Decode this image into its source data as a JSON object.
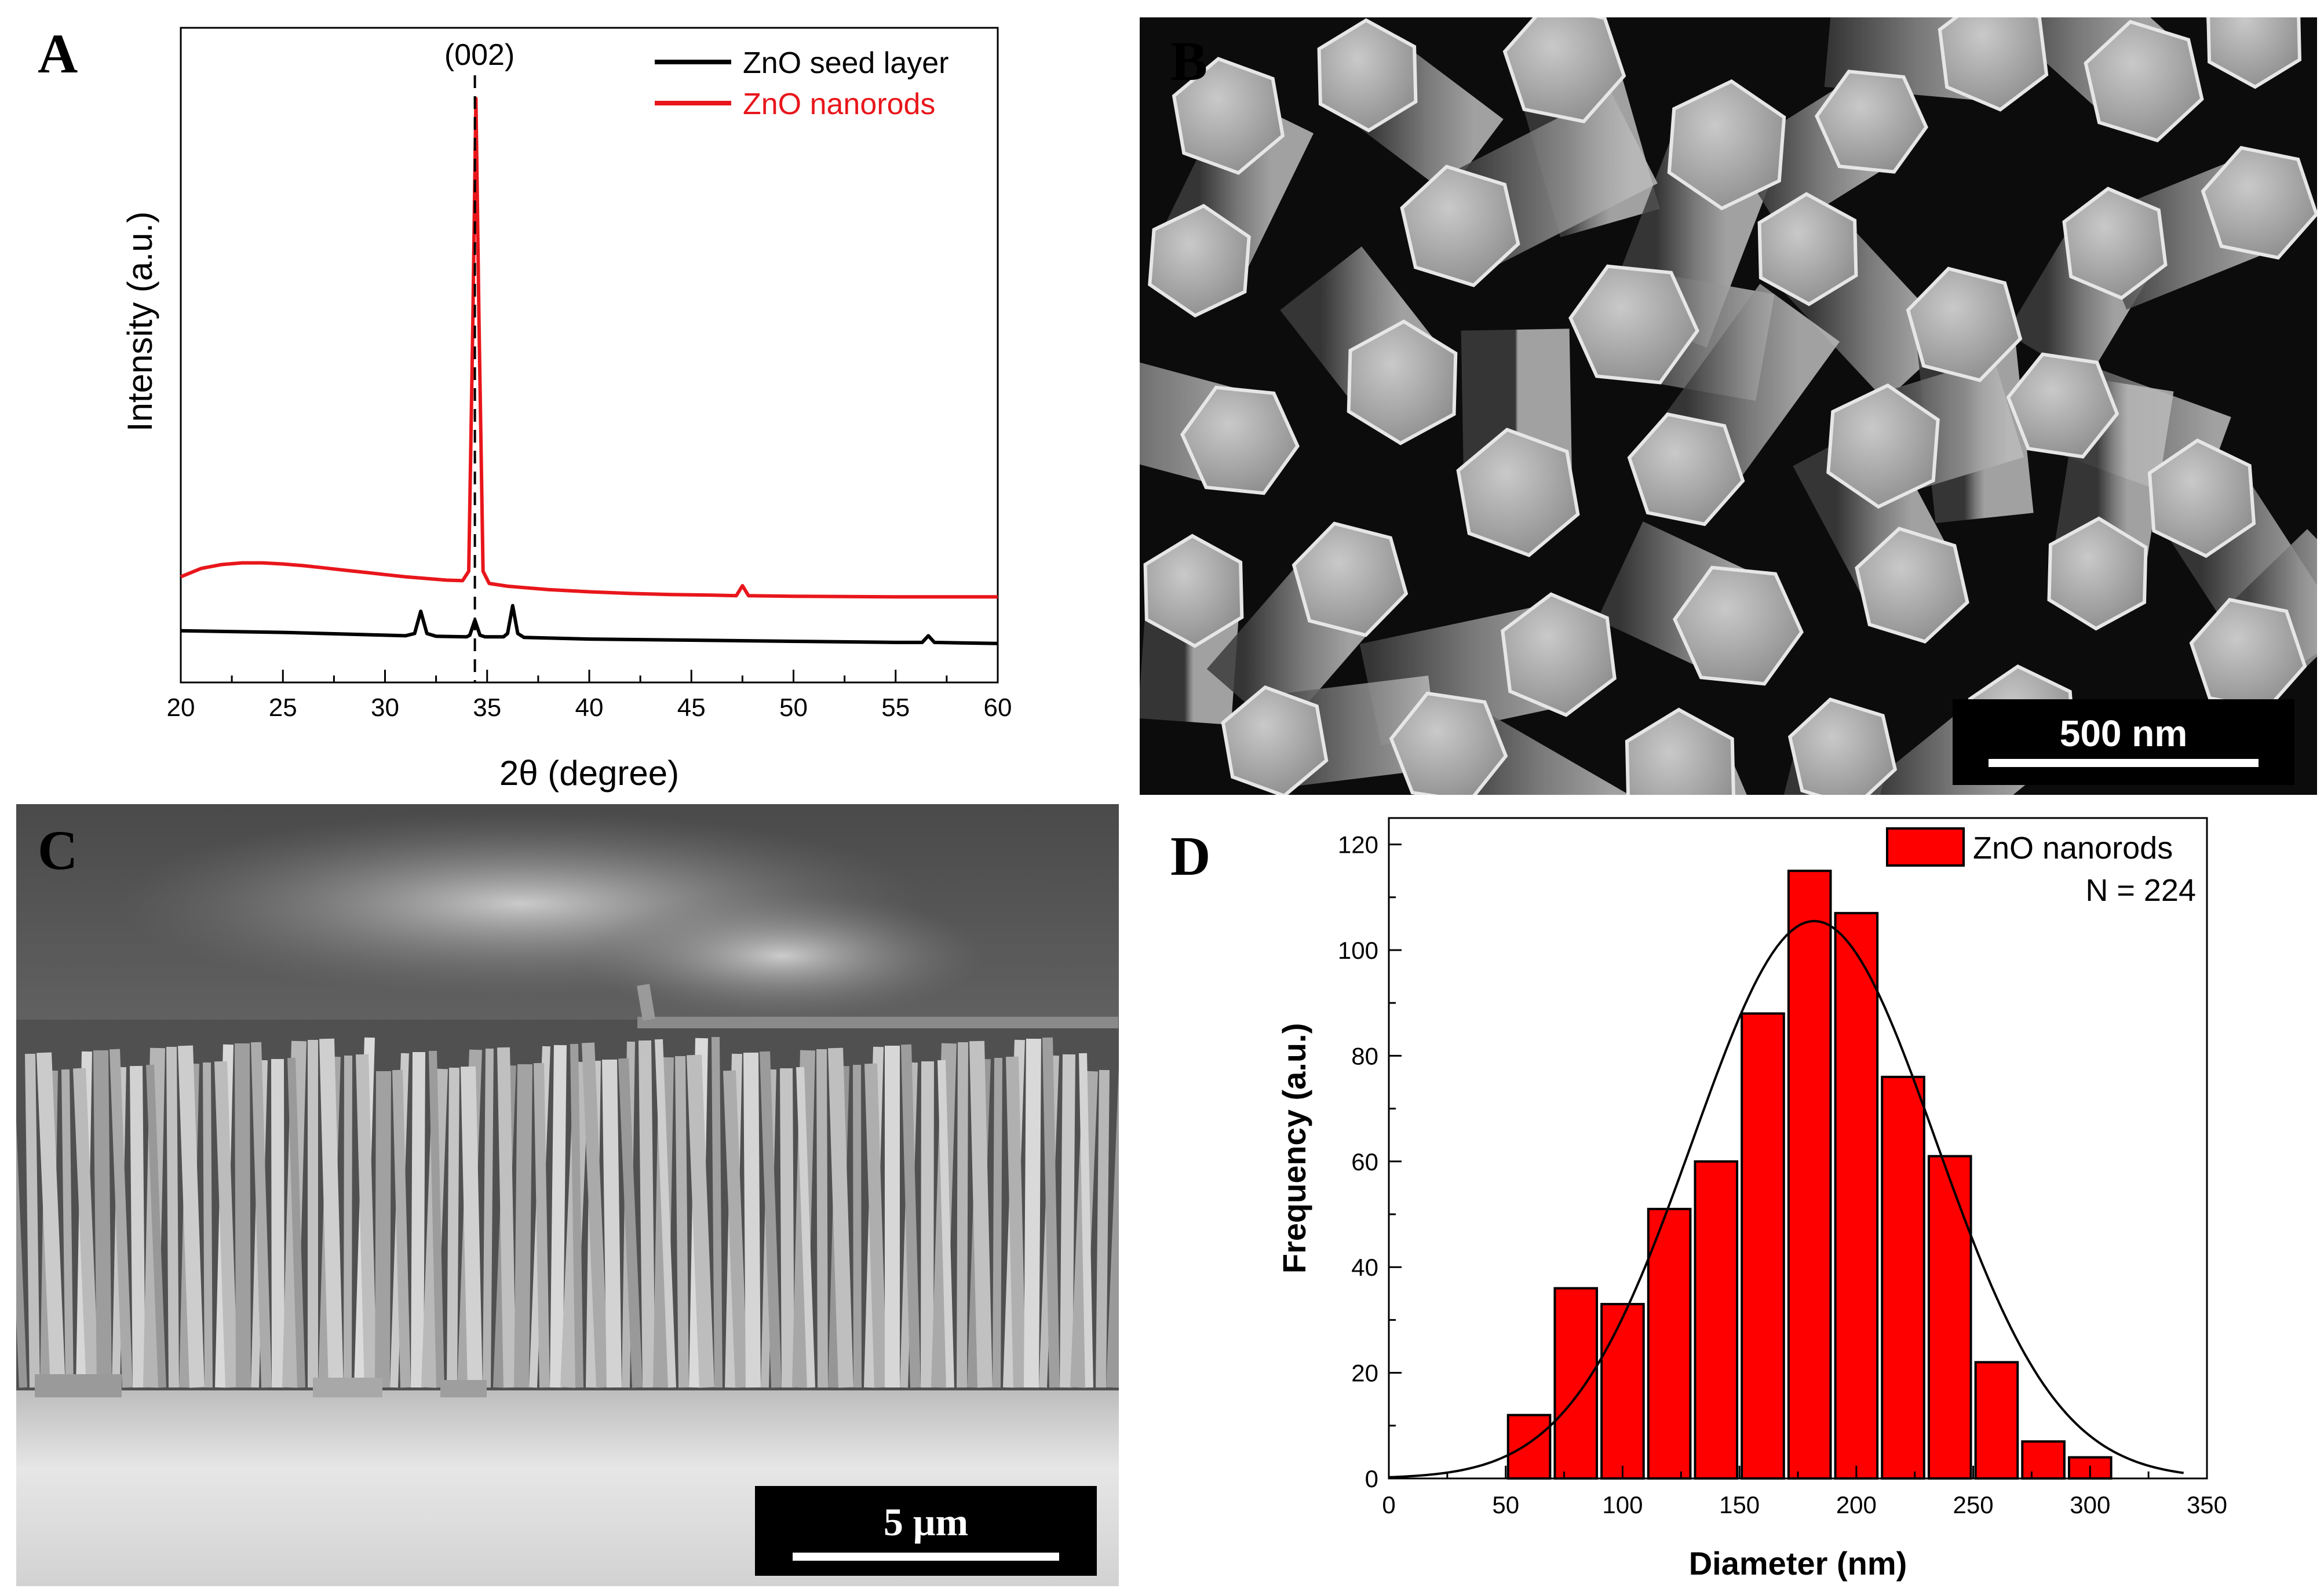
{
  "panel_labels": {
    "a": "A",
    "b": "B",
    "c": "C",
    "d": "D"
  },
  "scale_bars": {
    "b": "500 nm",
    "c": "5 μm"
  },
  "colors": {
    "seed": "#000000",
    "nanorods": "#e8161b",
    "bar_fill": "#ff0000",
    "fit": "#000000"
  },
  "chart_data": [
    {
      "panel": "A",
      "type": "line",
      "title": "",
      "xlabel": "2θ (degree)",
      "ylabel": "Intensity (a.u.)",
      "xlim": [
        20,
        60
      ],
      "xticks": [
        20,
        25,
        30,
        35,
        40,
        45,
        50,
        55,
        60
      ],
      "y_ticks_shown": false,
      "annotation": {
        "text": "(002)",
        "x": 34.4,
        "dashed_line": true
      },
      "legend": {
        "position": "top-right",
        "entries": [
          "ZnO seed layer",
          "ZnO nanorods"
        ]
      },
      "series": [
        {
          "name": "ZnO seed layer",
          "color": "#000000",
          "points": [
            [
              20,
              0.043
            ],
            [
              25,
              0.04
            ],
            [
              30,
              0.035
            ],
            [
              31.0,
              0.034
            ],
            [
              31.45,
              0.038
            ],
            [
              31.75,
              0.078
            ],
            [
              32.05,
              0.038
            ],
            [
              32.5,
              0.033
            ],
            [
              34.0,
              0.032
            ],
            [
              34.15,
              0.035
            ],
            [
              34.4,
              0.062
            ],
            [
              34.65,
              0.035
            ],
            [
              34.9,
              0.032
            ],
            [
              35.8,
              0.032
            ],
            [
              36.0,
              0.038
            ],
            [
              36.25,
              0.088
            ],
            [
              36.5,
              0.038
            ],
            [
              36.8,
              0.031
            ],
            [
              40,
              0.028
            ],
            [
              45,
              0.026
            ],
            [
              50,
              0.024
            ],
            [
              55,
              0.022
            ],
            [
              56.3,
              0.022
            ],
            [
              56.6,
              0.034
            ],
            [
              56.9,
              0.022
            ],
            [
              60,
              0.02
            ]
          ]
        },
        {
          "name": "ZnO nanorods",
          "color": "#e8161b",
          "points": [
            [
              20,
              0.14
            ],
            [
              21,
              0.155
            ],
            [
              22,
              0.162
            ],
            [
              23,
              0.165
            ],
            [
              24,
              0.165
            ],
            [
              25,
              0.163
            ],
            [
              26,
              0.16
            ],
            [
              27,
              0.156
            ],
            [
              28,
              0.152
            ],
            [
              29,
              0.148
            ],
            [
              30,
              0.144
            ],
            [
              31,
              0.14
            ],
            [
              32,
              0.137
            ],
            [
              33,
              0.134
            ],
            [
              33.8,
              0.133
            ],
            [
              34.1,
              0.15
            ],
            [
              34.3,
              0.6
            ],
            [
              34.45,
              1.0
            ],
            [
              34.6,
              0.6
            ],
            [
              34.8,
              0.15
            ],
            [
              35.1,
              0.128
            ],
            [
              36,
              0.123
            ],
            [
              38,
              0.117
            ],
            [
              40,
              0.113
            ],
            [
              42,
              0.11
            ],
            [
              44,
              0.108
            ],
            [
              46,
              0.107
            ],
            [
              47.2,
              0.106
            ],
            [
              47.5,
              0.124
            ],
            [
              47.8,
              0.106
            ],
            [
              50,
              0.105
            ],
            [
              55,
              0.104
            ],
            [
              60,
              0.104
            ]
          ]
        }
      ]
    },
    {
      "panel": "D",
      "type": "bar",
      "title": "",
      "xlabel": "Diameter (nm)",
      "ylabel": "Frequency (a.u.)",
      "xlim": [
        0,
        350
      ],
      "ylim": [
        0,
        125
      ],
      "xticks": [
        0,
        50,
        100,
        150,
        200,
        250,
        300,
        350
      ],
      "yticks": [
        0,
        20,
        40,
        60,
        80,
        100,
        120
      ],
      "legend": {
        "position": "top-right",
        "entries": [
          "ZnO nanorods"
        ],
        "note": "N = 224"
      },
      "bin_width": 20,
      "bin_centers": [
        60,
        80,
        100,
        120,
        140,
        160,
        180,
        200,
        220,
        240,
        260,
        280,
        300
      ],
      "series": [
        {
          "name": "ZnO nanorods",
          "values": [
            12,
            36,
            33,
            51,
            60,
            88,
            115,
            107,
            76,
            61,
            22,
            7,
            4
          ]
        }
      ],
      "fit": {
        "type": "gaussian",
        "mean": 182,
        "sigma": 52,
        "peak": 105.5
      }
    }
  ]
}
